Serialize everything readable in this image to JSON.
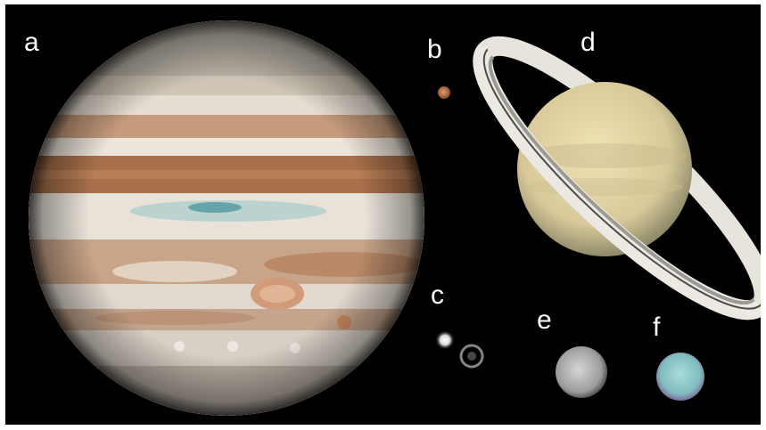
{
  "panels": [
    {
      "label": "a",
      "subject": "jupiter-icon"
    },
    {
      "label": "b",
      "subject": "mars-icon"
    },
    {
      "label": "c",
      "subject": "binary-star-icon"
    },
    {
      "label": "d",
      "subject": "saturn-icon"
    },
    {
      "label": "e",
      "subject": "moon-icon"
    },
    {
      "label": "f",
      "subject": "uranus-icon"
    }
  ],
  "colors": {
    "background": "#000000",
    "label": "#ffffff",
    "jupiter_band_brown": "#a8704a",
    "jupiter_zone_light": "#e8dcd0",
    "jupiter_red_spot": "#d19a78",
    "saturn_body": "#e2d4a6",
    "saturn_ring": "#e6e4dc",
    "uranus": "#8fc7c4"
  }
}
